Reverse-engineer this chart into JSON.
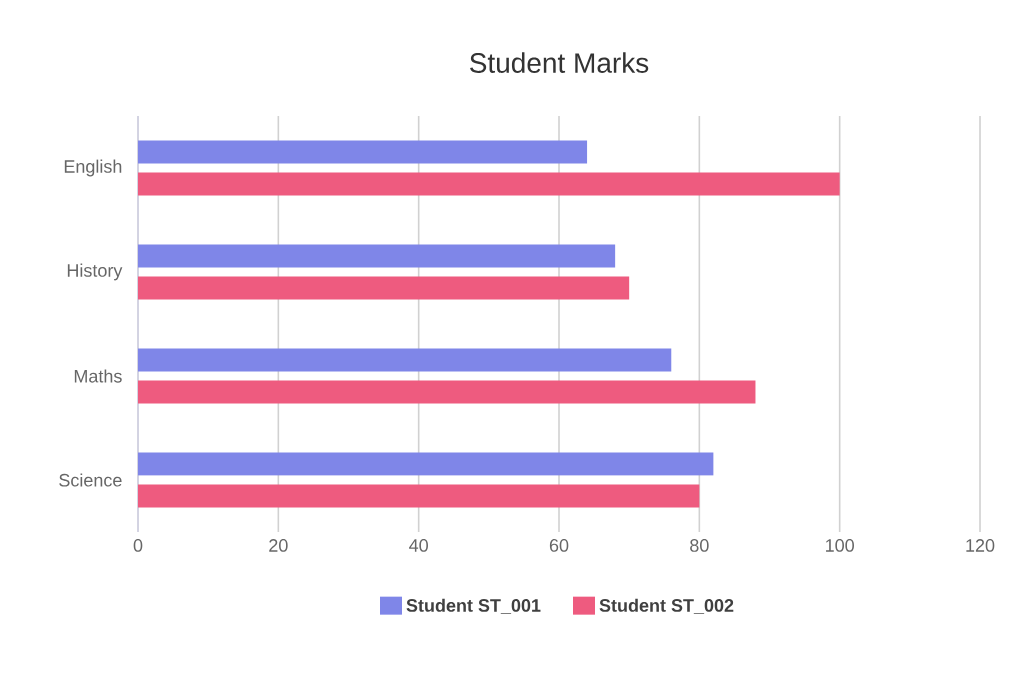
{
  "chart_data": {
    "type": "bar",
    "orientation": "horizontal",
    "title": "Student Marks",
    "categories": [
      "English",
      "History",
      "Maths",
      "Science"
    ],
    "series": [
      {
        "name": "Student ST_001",
        "color": "#7f86e8",
        "values": [
          64,
          68,
          76,
          82
        ]
      },
      {
        "name": "Student ST_002",
        "color": "#ee5b7f",
        "values": [
          100,
          70,
          88,
          80
        ]
      }
    ],
    "xlim": [
      0,
      120
    ],
    "xticks": [
      0,
      20,
      40,
      60,
      80,
      100,
      120
    ],
    "grid": "x",
    "legend": "bottom"
  }
}
